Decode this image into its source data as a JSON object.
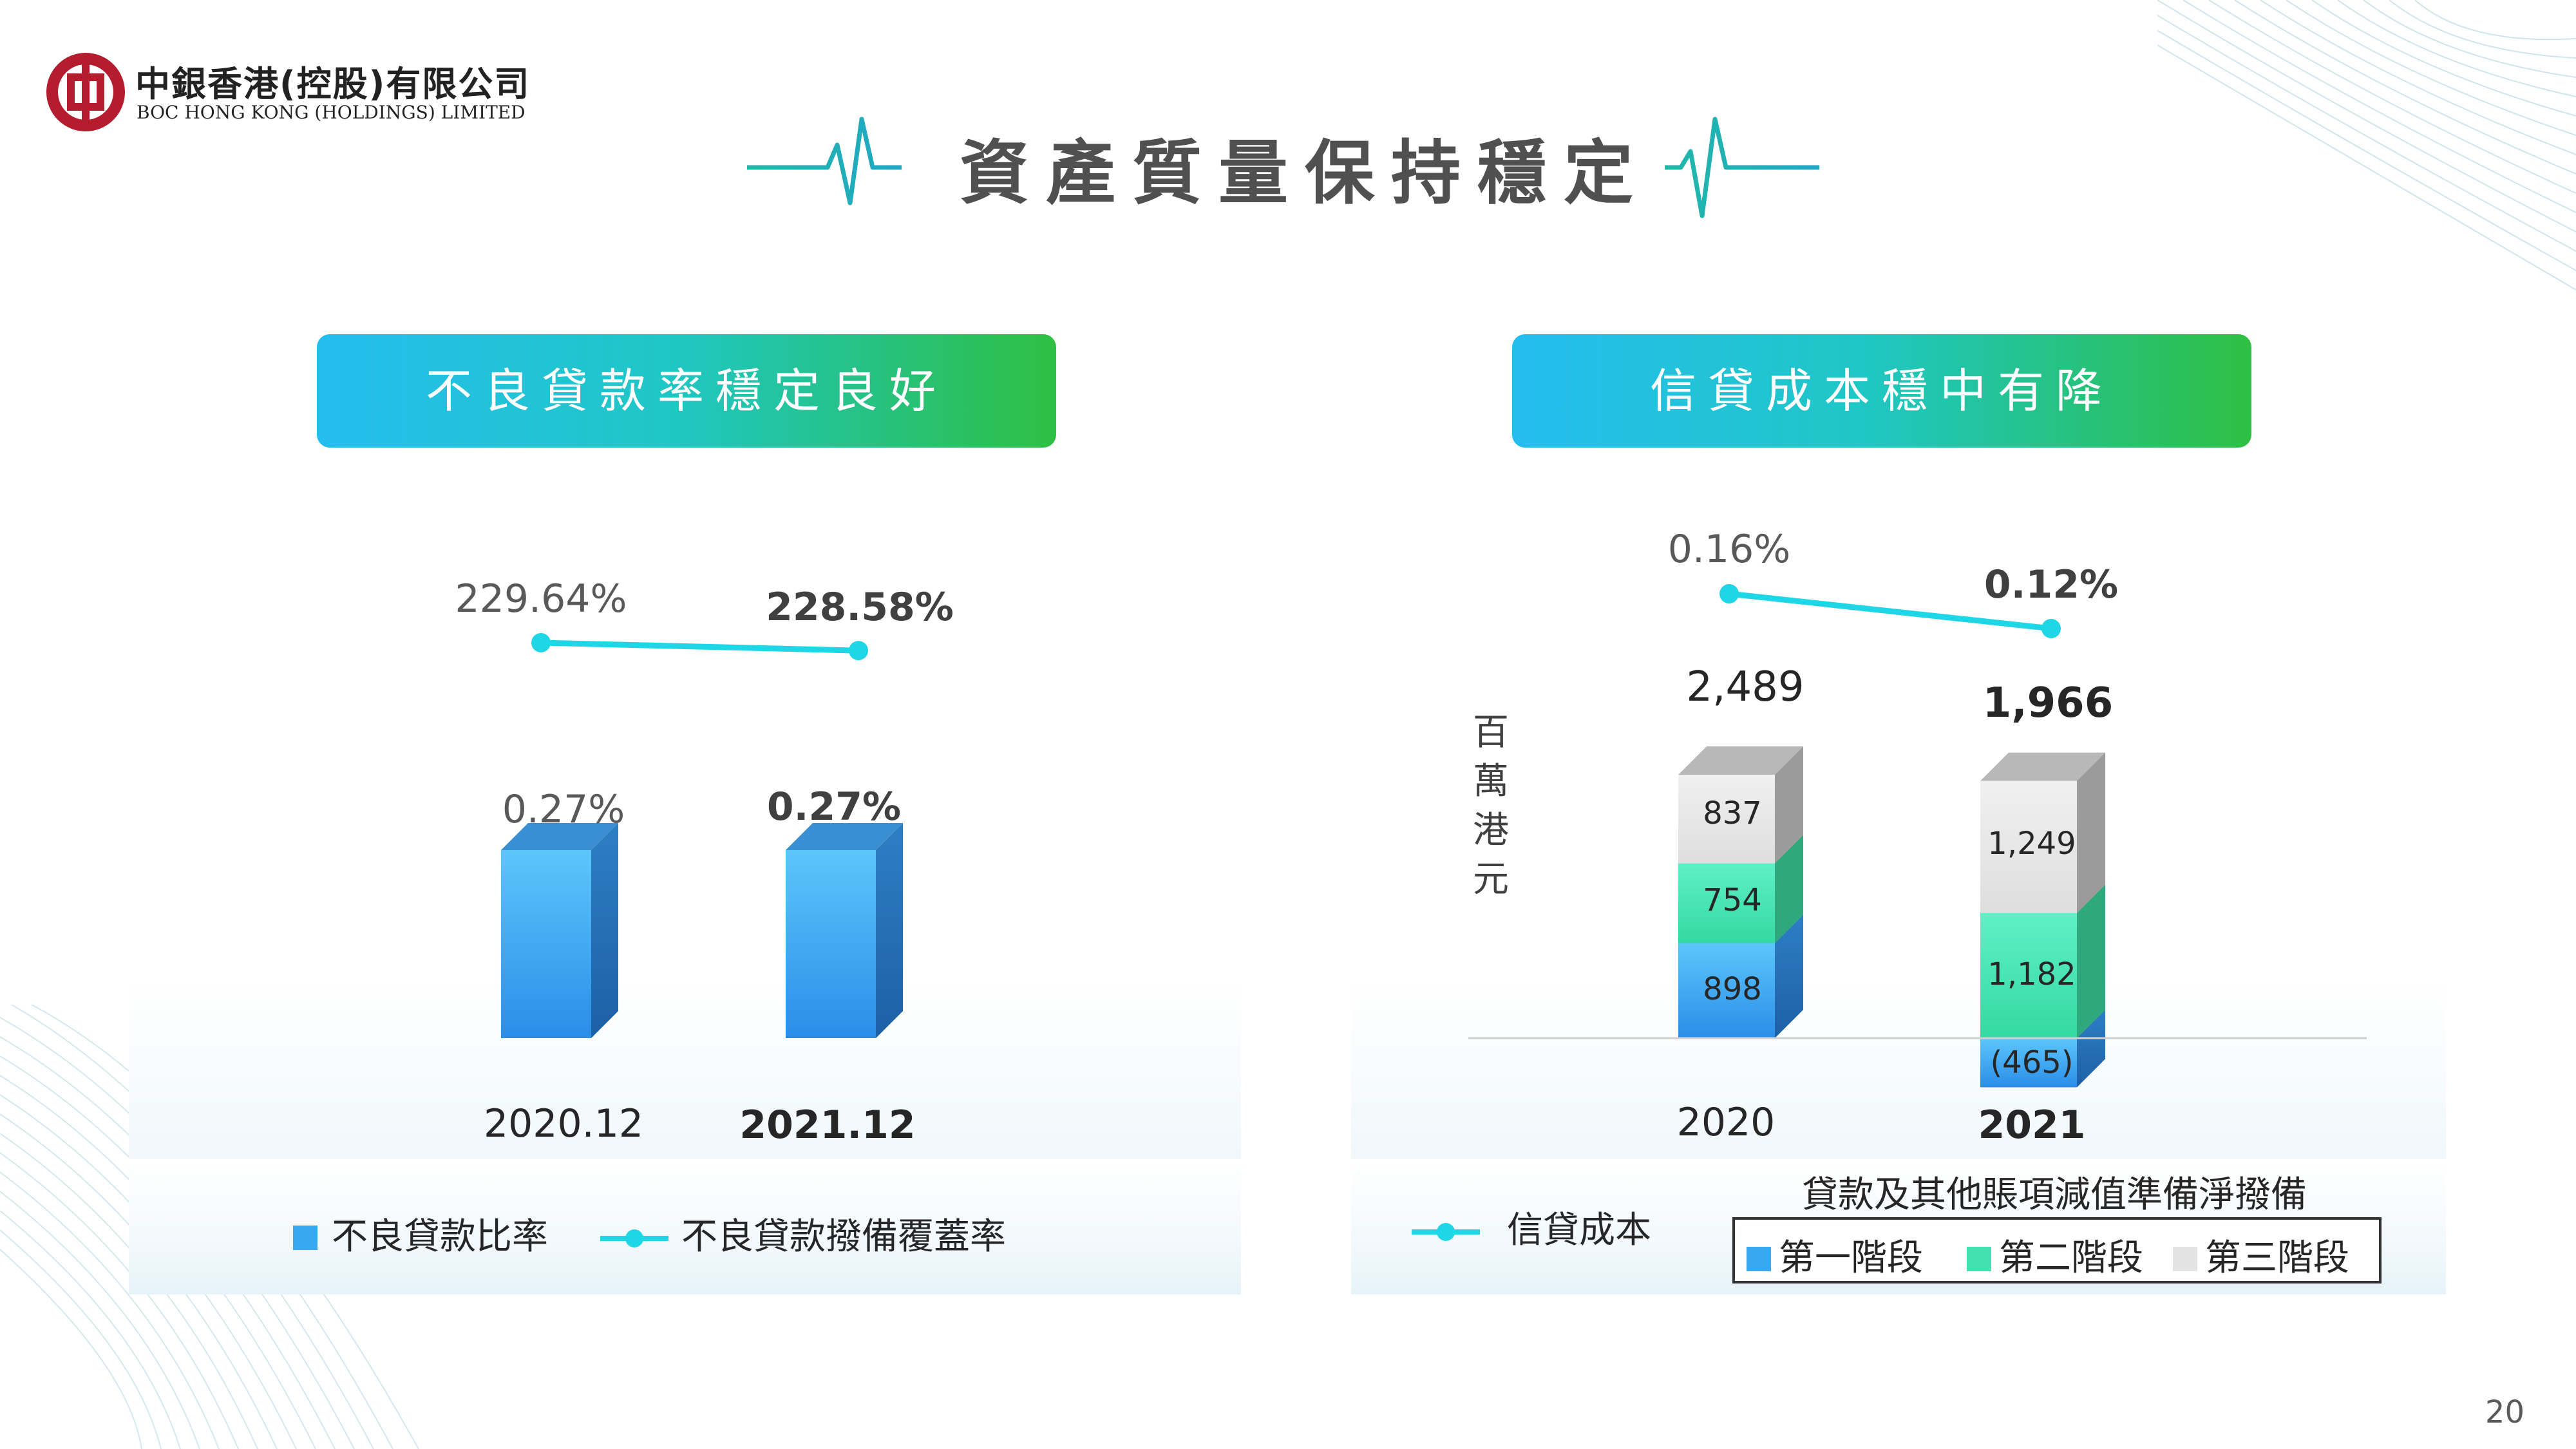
{
  "logo": {
    "cn": "中銀香港(控股)有限公司",
    "en": "BOC HONG KONG (HOLDINGS) LIMITED"
  },
  "title": "資產質量保持穩定",
  "page_number": "20",
  "colors": {
    "accent_teal": "#1fc7c4",
    "line_cyan": "#1fd6e6",
    "bar_blue": "#3aa8f0",
    "stage1": "#3aa8f0",
    "stage2": "#43e0b0",
    "stage3": "#e3e3e3",
    "logo_red": "#b51c2e"
  },
  "left": {
    "banner": "不良貸款率穩定良好",
    "legend": {
      "bar": "不良貸款比率",
      "line": "不良貸款撥備覆蓋率"
    }
  },
  "right": {
    "banner": "信貸成本穩中有降",
    "unit": "百萬港元",
    "legend": {
      "line": "信貸成本",
      "group_title": "貸款及其他賬項減值準備淨撥備",
      "stage1": "第一階段",
      "stage2": "第二階段",
      "stage3": "第三階段"
    }
  },
  "chart_data": [
    {
      "type": "bar",
      "categories": [
        "2020.12",
        "2021.12"
      ],
      "series": [
        {
          "name": "不良貸款比率",
          "type": "bar",
          "values": [
            0.27,
            0.27
          ],
          "labels": [
            "0.27%",
            "0.27%"
          ]
        },
        {
          "name": "不良貸款撥備覆蓋率",
          "type": "line",
          "values": [
            229.64,
            228.58
          ],
          "labels": [
            "229.64%",
            "228.58%"
          ]
        }
      ]
    },
    {
      "type": "bar",
      "stacked": true,
      "categories": [
        "2020",
        "2021"
      ],
      "totals": [
        2489,
        1966
      ],
      "total_labels": [
        "2,489",
        "1,966"
      ],
      "series": [
        {
          "name": "第一階段",
          "values": [
            898,
            -465
          ],
          "labels": [
            "898",
            "(465)"
          ]
        },
        {
          "name": "第二階段",
          "values": [
            754,
            1182
          ],
          "labels": [
            "754",
            "1,182"
          ]
        },
        {
          "name": "第三階段",
          "values": [
            837,
            1249
          ],
          "labels": [
            "837",
            "1,249"
          ]
        },
        {
          "name": "信貸成本",
          "type": "line",
          "values": [
            0.16,
            0.12
          ],
          "labels": [
            "0.16%",
            "0.12%"
          ]
        }
      ]
    }
  ]
}
